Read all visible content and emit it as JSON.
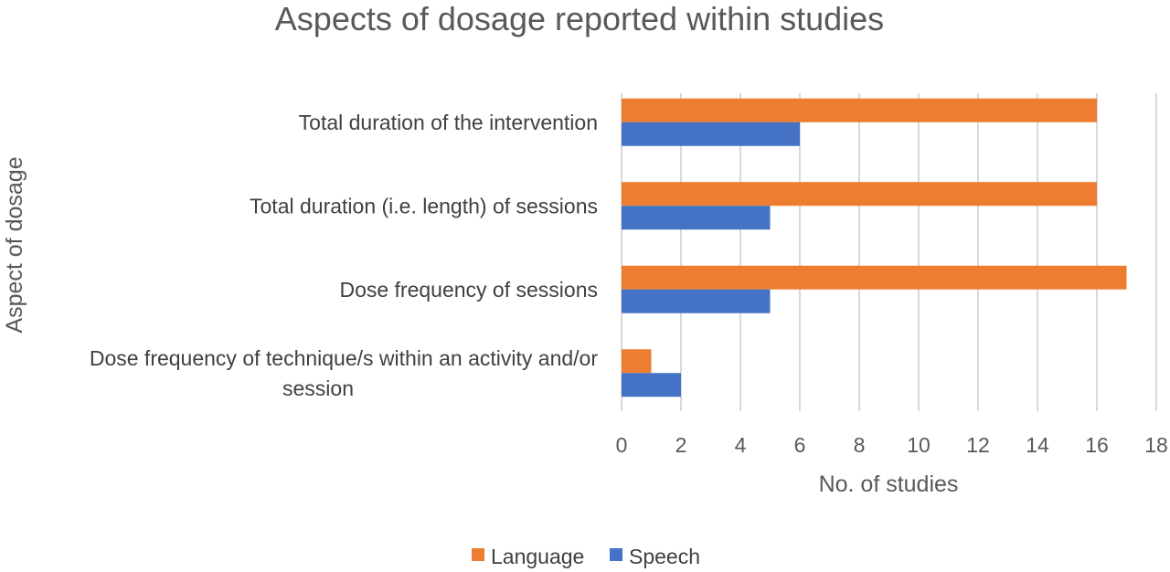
{
  "chart_data": {
    "type": "bar",
    "orientation": "horizontal",
    "title": "Aspects of dosage reported within studies",
    "xlabel": "No. of studies",
    "ylabel": "Aspect of dosage",
    "categories": [
      [
        "Total duration of the intervention"
      ],
      [
        "Total duration (i.e. length) of sessions"
      ],
      [
        "Dose frequency of sessions"
      ],
      [
        "Dose frequency of technique/s within an activity and/or",
        "session"
      ]
    ],
    "series": [
      {
        "name": "Language",
        "color": "#ed7d31",
        "values": [
          16,
          16,
          17,
          1
        ]
      },
      {
        "name": "Speech",
        "color": "#4472c4",
        "values": [
          6,
          5,
          5,
          2
        ]
      }
    ],
    "xlim": [
      0,
      18
    ],
    "xticks": [
      0,
      2,
      4,
      6,
      8,
      10,
      12,
      14,
      16,
      18
    ],
    "grid": "vertical",
    "legend": "bottom"
  }
}
